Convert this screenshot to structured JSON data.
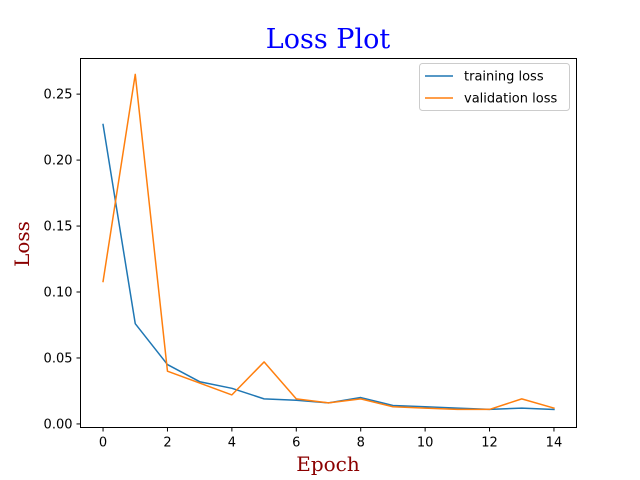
{
  "chart_data": {
    "type": "line",
    "title": "Loss Plot",
    "xlabel": "Epoch",
    "ylabel": "Loss",
    "xlim": [
      -0.7,
      14.7
    ],
    "ylim": [
      -0.0027,
      0.277
    ],
    "x_ticks": [
      0,
      2,
      4,
      6,
      8,
      10,
      12,
      14
    ],
    "y_ticks": [
      0.0,
      0.05,
      0.1,
      0.15,
      0.2,
      0.25
    ],
    "x_tick_labels": [
      "0",
      "2",
      "4",
      "6",
      "8",
      "10",
      "12",
      "14"
    ],
    "y_tick_labels": [
      "0.00",
      "0.05",
      "0.10",
      "0.15",
      "0.20",
      "0.25"
    ],
    "legend_position": "top-right",
    "grid": false,
    "x": [
      0,
      1,
      2,
      3,
      4,
      5,
      6,
      7,
      8,
      9,
      10,
      11,
      12,
      13,
      14
    ],
    "series": [
      {
        "name": "training loss",
        "color": "#1f77b4",
        "values": [
          0.227,
          0.076,
          0.045,
          0.032,
          0.027,
          0.019,
          0.018,
          0.016,
          0.02,
          0.014,
          0.013,
          0.012,
          0.011,
          0.012,
          0.011
        ]
      },
      {
        "name": "validation loss",
        "color": "#ff7f0e",
        "values": [
          0.108,
          0.265,
          0.04,
          0.031,
          0.022,
          0.047,
          0.019,
          0.016,
          0.019,
          0.013,
          0.012,
          0.011,
          0.011,
          0.019,
          0.012
        ]
      }
    ],
    "title_color": "#0000ff",
    "label_color": "#8b0000"
  }
}
